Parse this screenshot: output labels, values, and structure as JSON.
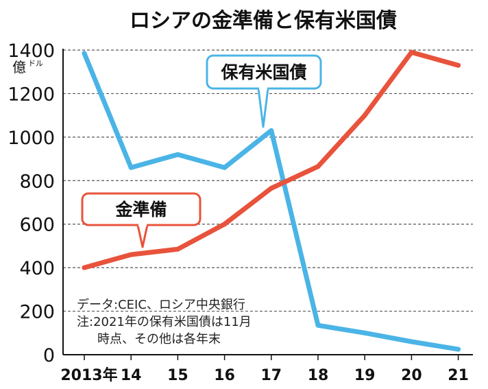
{
  "chart_data": {
    "type": "line",
    "title": "ロシアの金準備と保有米国債",
    "ylabel_unit": "億ドル",
    "ylim": [
      0,
      1400
    ],
    "yticks": [
      0,
      200,
      400,
      600,
      800,
      1000,
      1200,
      1400
    ],
    "categories": [
      "2013年",
      "14",
      "15",
      "16",
      "17",
      "18",
      "19",
      "20",
      "21"
    ],
    "grid": true,
    "series": [
      {
        "name": "保有米国債",
        "color": "#4bb4e6",
        "values": [
          1385,
          860,
          920,
          860,
          1030,
          135,
          100,
          60,
          25
        ]
      },
      {
        "name": "金準備",
        "color": "#e8533c",
        "values": [
          400,
          460,
          485,
          600,
          765,
          865,
          1100,
          1390,
          1330
        ]
      }
    ],
    "annotations": [
      "データ:CEIC、ロシア中央銀行",
      "注:2021年の保有米国債は11月",
      "時点、その他は各年末"
    ]
  }
}
